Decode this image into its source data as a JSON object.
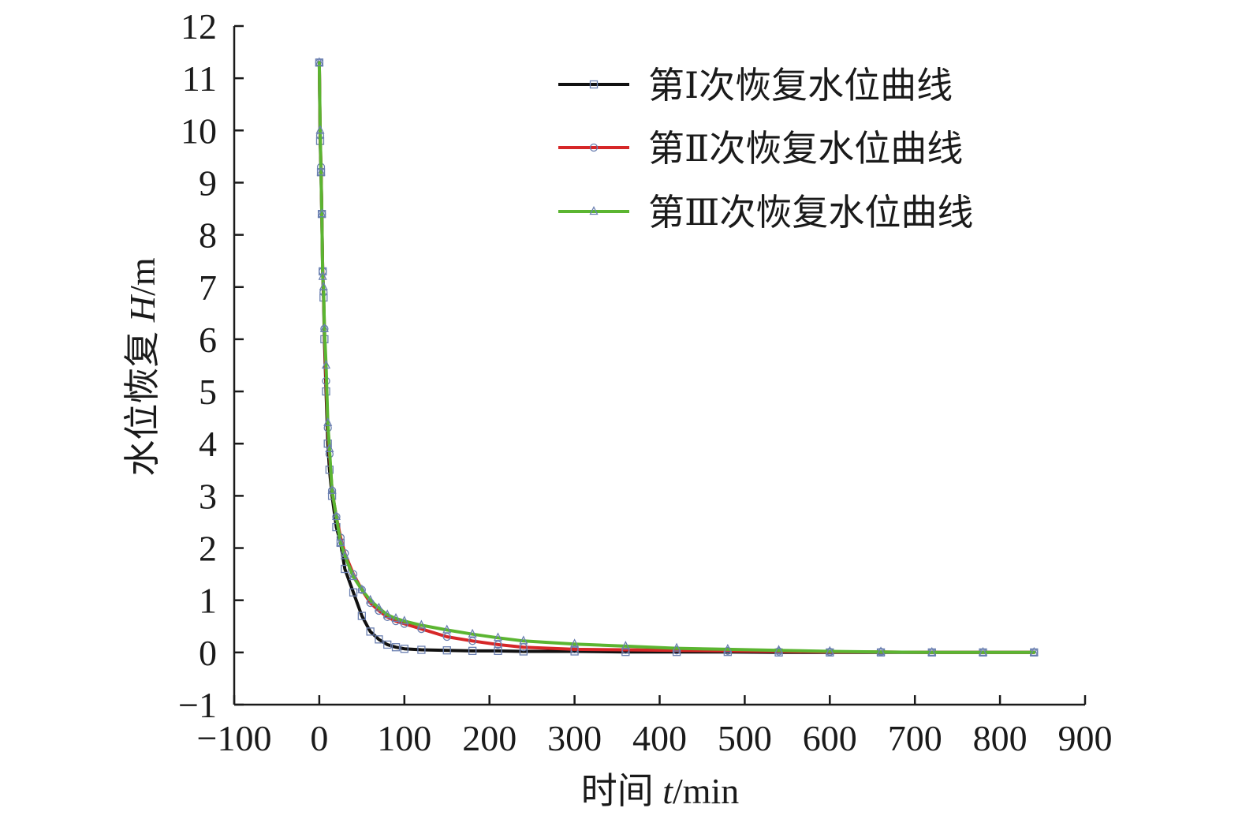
{
  "chart_data": {
    "type": "line",
    "xlabel_prefix": "时间 ",
    "xlabel_var": "t",
    "xlabel_unit": "/min",
    "ylabel_prefix": "水位恢复 ",
    "ylabel_var": "H",
    "ylabel_unit": "/m",
    "xlim": [
      -100,
      900
    ],
    "ylim": [
      -1,
      12
    ],
    "xticks": [
      -100,
      0,
      100,
      200,
      300,
      400,
      500,
      600,
      700,
      800,
      900
    ],
    "xtick_labels": [
      "−100",
      "0",
      "100",
      "200",
      "300",
      "400",
      "500",
      "600",
      "700",
      "800",
      "900"
    ],
    "yticks": [
      -1,
      0,
      1,
      2,
      3,
      4,
      5,
      6,
      7,
      8,
      9,
      10,
      11,
      12
    ],
    "ytick_labels": [
      "−1",
      "0",
      "1",
      "2",
      "3",
      "4",
      "5",
      "6",
      "7",
      "8",
      "9",
      "10",
      "11",
      "12"
    ],
    "grid": false,
    "legend_position": "top-right",
    "series": [
      {
        "name": "第Ⅰ次恢复水位曲线",
        "color": "#111111",
        "marker": "square",
        "x": [
          0,
          1,
          2,
          3,
          4,
          5,
          6,
          8,
          10,
          12,
          15,
          20,
          25,
          30,
          40,
          50,
          60,
          70,
          80,
          90,
          100,
          120,
          150,
          180,
          210,
          240,
          300,
          360,
          420,
          480,
          540,
          600,
          660,
          720,
          780,
          840
        ],
        "y": [
          11.3,
          9.8,
          9.2,
          8.4,
          7.3,
          6.8,
          6.0,
          5.0,
          4.0,
          3.5,
          3.0,
          2.4,
          2.1,
          1.6,
          1.15,
          0.7,
          0.4,
          0.25,
          0.15,
          0.1,
          0.07,
          0.05,
          0.04,
          0.03,
          0.03,
          0.02,
          0.02,
          0.01,
          0.01,
          0.01,
          0.0,
          0.0,
          0.0,
          0.0,
          0.0,
          0.0
        ]
      },
      {
        "name": "第Ⅱ次恢复水位曲线",
        "color": "#d62728",
        "marker": "circle",
        "x": [
          0,
          1,
          2,
          3,
          4,
          5,
          6,
          8,
          10,
          12,
          15,
          20,
          25,
          30,
          40,
          50,
          60,
          70,
          80,
          90,
          100,
          120,
          150,
          180,
          210,
          240,
          300,
          360,
          420,
          480,
          540,
          600,
          660,
          720,
          780,
          840
        ],
        "y": [
          11.3,
          9.9,
          9.3,
          8.4,
          7.3,
          6.9,
          6.2,
          5.2,
          4.3,
          3.8,
          3.1,
          2.6,
          2.2,
          1.9,
          1.5,
          1.2,
          0.95,
          0.8,
          0.68,
          0.6,
          0.55,
          0.45,
          0.3,
          0.22,
          0.15,
          0.1,
          0.06,
          0.05,
          0.04,
          0.03,
          0.02,
          0.01,
          0.01,
          0.0,
          0.0,
          0.0
        ]
      },
      {
        "name": "第Ⅲ次恢复水位曲线",
        "color": "#5bb531",
        "marker": "triangle",
        "x": [
          0,
          1,
          2,
          3,
          4,
          5,
          6,
          8,
          10,
          12,
          15,
          20,
          25,
          30,
          40,
          50,
          60,
          70,
          80,
          90,
          100,
          120,
          150,
          180,
          210,
          240,
          300,
          360,
          420,
          480,
          540,
          600,
          660,
          720,
          780,
          840
        ],
        "y": [
          11.3,
          10.0,
          9.2,
          8.4,
          7.2,
          7.0,
          6.2,
          5.5,
          4.4,
          3.9,
          3.1,
          2.6,
          2.1,
          1.85,
          1.45,
          1.2,
          1.0,
          0.85,
          0.72,
          0.65,
          0.6,
          0.52,
          0.43,
          0.35,
          0.28,
          0.22,
          0.16,
          0.12,
          0.08,
          0.06,
          0.04,
          0.02,
          0.01,
          0.0,
          0.0,
          0.0
        ]
      }
    ]
  }
}
